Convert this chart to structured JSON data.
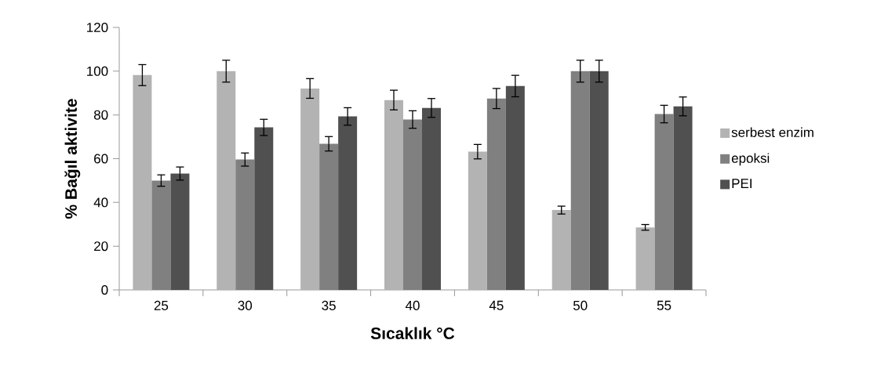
{
  "chart_data": {
    "type": "bar",
    "xlabel": "Sıcaklık °C",
    "ylabel": "% Bağıl aktivite",
    "categories": [
      "25",
      "30",
      "35",
      "40",
      "45",
      "50",
      "55"
    ],
    "series": [
      {
        "name": "serbest enzim",
        "color": "#b3b3b3",
        "values": [
          98.2,
          100,
          92.1,
          86.8,
          63.2,
          36.5,
          28.6
        ],
        "errors": [
          4.8,
          5,
          4.5,
          4.5,
          3.3,
          1.8,
          1.3
        ]
      },
      {
        "name": "epoksi",
        "color": "#808080",
        "values": [
          50,
          59.6,
          66.8,
          77.9,
          87.5,
          100,
          80.4
        ],
        "errors": [
          2.6,
          3,
          3.3,
          4,
          4.6,
          5,
          4
        ]
      },
      {
        "name": "PEI",
        "color": "#505050",
        "values": [
          53.2,
          74.3,
          79.3,
          83.2,
          93.2,
          100,
          83.9
        ],
        "errors": [
          3,
          3.7,
          4,
          4.3,
          4.9,
          5,
          4.3
        ]
      }
    ],
    "ylim": [
      0,
      120
    ],
    "yticks": [
      0,
      20,
      40,
      60,
      80,
      100,
      120
    ],
    "grid": false,
    "legend": "right"
  }
}
